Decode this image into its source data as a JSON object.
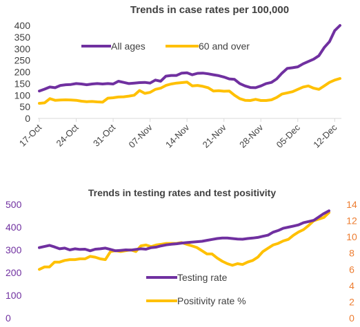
{
  "chart_data": [
    {
      "type": "line",
      "title": "Trends in case rates per 100,000",
      "xlabel": "",
      "ylabel": "",
      "ylim": [
        0,
        400
      ],
      "yticks": [
        0,
        50,
        100,
        150,
        200,
        250,
        300,
        350,
        400
      ],
      "x_tick_labels": [
        "17-Oct",
        "24-Oct",
        "31-Oct",
        "07-Nov",
        "14-Nov",
        "21-Nov",
        "28-Nov",
        "05-Dec",
        "12-Dec"
      ],
      "x_tick_days": [
        0,
        7,
        14,
        21,
        28,
        35,
        42,
        49,
        56
      ],
      "x_days": [
        0,
        1,
        2,
        3,
        4,
        5,
        6,
        7,
        8,
        9,
        10,
        11,
        12,
        13,
        14,
        15,
        16,
        17,
        18,
        19,
        20,
        21,
        22,
        23,
        24,
        25,
        26,
        27,
        28,
        29,
        30,
        31,
        32,
        33,
        34,
        35,
        36,
        37,
        38,
        39,
        40,
        41,
        42,
        43,
        44,
        45,
        46,
        47,
        48,
        49,
        50,
        51,
        52,
        53,
        54,
        55,
        56,
        57
      ],
      "legend_position": "top",
      "grid": false,
      "series": [
        {
          "name": "All ages",
          "color": "#7030a0",
          "values": [
            118,
            126,
            135,
            132,
            142,
            145,
            146,
            150,
            148,
            145,
            148,
            150,
            148,
            150,
            148,
            160,
            155,
            150,
            152,
            154,
            155,
            152,
            165,
            160,
            182,
            185,
            185,
            195,
            196,
            188,
            194,
            195,
            192,
            188,
            184,
            178,
            170,
            168,
            150,
            140,
            133,
            132,
            140,
            150,
            155,
            170,
            195,
            215,
            218,
            222,
            235,
            245,
            255,
            270,
            305,
            330,
            378,
            400
          ]
        },
        {
          "name": "60 and over",
          "color": "#ffc000",
          "values": [
            65,
            67,
            85,
            78,
            79,
            80,
            79,
            78,
            74,
            72,
            73,
            71,
            70,
            87,
            89,
            92,
            93,
            96,
            100,
            120,
            108,
            112,
            125,
            130,
            142,
            148,
            152,
            154,
            156,
            140,
            142,
            138,
            132,
            118,
            119,
            117,
            118,
            100,
            85,
            78,
            77,
            82,
            77,
            77,
            80,
            90,
            105,
            110,
            115,
            125,
            135,
            140,
            130,
            125,
            140,
            155,
            165,
            172
          ]
        }
      ]
    },
    {
      "type": "line",
      "title": "Trends in testing rates  and test positivity",
      "xlabel": "",
      "ylabel": "",
      "ylim": [
        0,
        500
      ],
      "yticks": [
        0,
        100,
        200,
        300,
        400,
        500
      ],
      "y2lim": [
        0,
        14
      ],
      "y2ticks": [
        0,
        2,
        4,
        6,
        8,
        10,
        12,
        14
      ],
      "x_days": [
        0,
        1,
        2,
        3,
        4,
        5,
        6,
        7,
        8,
        9,
        10,
        11,
        12,
        13,
        14,
        15,
        16,
        17,
        18,
        19,
        20,
        21,
        22,
        23,
        24,
        25,
        26,
        27,
        28,
        29,
        30,
        31,
        32,
        33,
        34,
        35,
        36,
        37,
        38,
        39,
        40,
        41,
        42,
        43,
        44,
        45,
        46,
        47,
        48,
        49,
        50,
        51,
        52,
        53,
        54,
        55,
        56,
        57
      ],
      "legend_position": "center",
      "grid": false,
      "series": [
        {
          "name": "Testing rate",
          "axis": "left",
          "color": "#7030a0",
          "values": [
            310,
            315,
            320,
            313,
            305,
            308,
            300,
            305,
            302,
            303,
            296,
            303,
            305,
            308,
            302,
            296,
            298,
            300,
            299,
            302,
            305,
            303,
            310,
            312,
            318,
            322,
            325,
            327,
            330,
            332,
            334,
            336,
            338,
            342,
            346,
            350,
            352,
            352,
            350,
            348,
            347,
            350,
            352,
            355,
            360,
            365,
            378,
            385,
            395,
            400,
            405,
            410,
            420,
            425,
            430,
            445,
            460,
            472
          ]
        },
        {
          "name": "Positivity rate %",
          "axis": "right",
          "color": "#ffc000",
          "values": [
            6.0,
            6.3,
            6.3,
            6.9,
            6.9,
            7.1,
            7.2,
            7.2,
            7.3,
            7.3,
            7.6,
            7.5,
            7.3,
            7.2,
            8.2,
            8.3,
            8.2,
            8.3,
            8.4,
            8.2,
            8.9,
            9.0,
            8.8,
            9.0,
            9.1,
            9.2,
            9.2,
            9.2,
            9.3,
            9.1,
            8.9,
            8.7,
            8.3,
            7.9,
            7.9,
            7.4,
            7.0,
            6.7,
            6.5,
            6.7,
            6.6,
            6.9,
            7.1,
            7.5,
            8.2,
            8.6,
            9.0,
            9.2,
            9.5,
            9.7,
            10.2,
            10.6,
            10.9,
            11.4,
            12.0,
            12.2,
            12.4,
            13.0
          ]
        }
      ]
    }
  ]
}
